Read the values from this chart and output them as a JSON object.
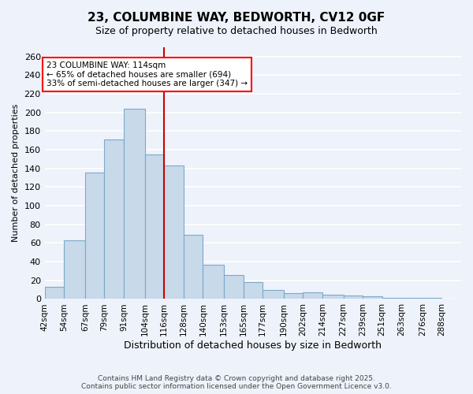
{
  "title1": "23, COLUMBINE WAY, BEDWORTH, CV12 0GF",
  "title2": "Size of property relative to detached houses in Bedworth",
  "xlabel": "Distribution of detached houses by size in Bedworth",
  "ylabel": "Number of detached properties",
  "footer1": "Contains HM Land Registry data © Crown copyright and database right 2025.",
  "footer2": "Contains public sector information licensed under the Open Government Licence v3.0.",
  "annotation_line1": "23 COLUMBINE WAY: 114sqm",
  "annotation_line2": "← 65% of detached houses are smaller (694)",
  "annotation_line3": "33% of semi-detached houses are larger (347) →",
  "categories": [
    "42sqm",
    "54sqm",
    "67sqm",
    "79sqm",
    "91sqm",
    "104sqm",
    "116sqm",
    "128sqm",
    "140sqm",
    "153sqm",
    "165sqm",
    "177sqm",
    "190sqm",
    "202sqm",
    "214sqm",
    "227sqm",
    "239sqm",
    "251sqm",
    "263sqm",
    "276sqm",
    "288sqm"
  ],
  "bin_starts": [
    42,
    54,
    67,
    79,
    91,
    104,
    116,
    128,
    140,
    153,
    165,
    177,
    190,
    202,
    214,
    227,
    239,
    251,
    263,
    276,
    288
  ],
  "bin_ends": [
    54,
    67,
    79,
    91,
    104,
    116,
    128,
    140,
    153,
    165,
    177,
    190,
    202,
    214,
    227,
    239,
    251,
    263,
    276,
    288,
    300
  ],
  "bar_values": [
    13,
    63,
    136,
    171,
    204,
    155,
    143,
    69,
    37,
    26,
    18,
    10,
    6,
    7,
    5,
    4,
    3,
    1,
    1,
    1,
    0
  ],
  "bar_color": "#c8d9ea",
  "bar_edge_color": "#7aaac8",
  "vline_x": 116,
  "vline_color": "#cc0000",
  "ylim": [
    0,
    270
  ],
  "yticks": [
    0,
    20,
    40,
    60,
    80,
    100,
    120,
    140,
    160,
    180,
    200,
    220,
    240,
    260
  ],
  "bg_color": "#eef2fa",
  "grid_color": "#ffffff",
  "title_fontsize": 11,
  "subtitle_fontsize": 9,
  "ylabel_fontsize": 8,
  "xlabel_fontsize": 9,
  "tick_fontsize": 7.5,
  "footer_fontsize": 6.5,
  "annotation_fontsize": 7.5
}
